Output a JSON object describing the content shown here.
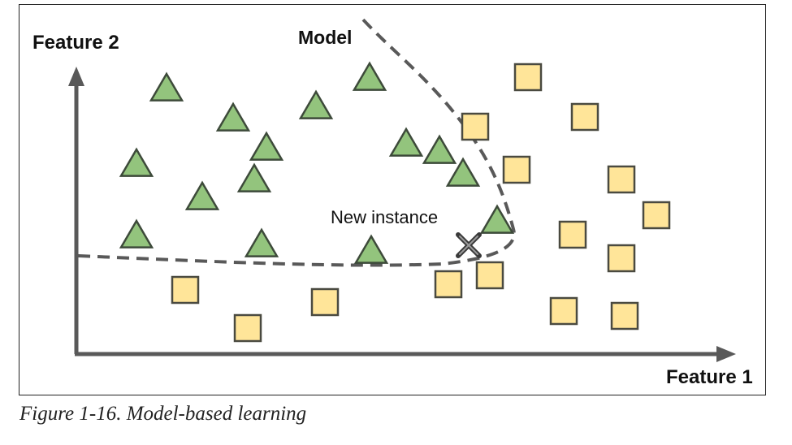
{
  "axes": {
    "x_label": "Feature 1",
    "y_label": "Feature 2"
  },
  "model_label": "Model",
  "new_instance_label": "New instance",
  "caption": "Figure 1-16. Model-based learning",
  "colors": {
    "triangle_fill": "#93c47d",
    "triangle_stroke": "#3d4a3a",
    "square_fill": "#ffe599",
    "square_stroke": "#4a4a40",
    "axis": "#595959",
    "boundary": "#595959",
    "cross": "#3a3a3a"
  },
  "class_a_shape": "triangle",
  "class_b_shape": "square",
  "new_instance_marker": "x-cross-icon"
}
